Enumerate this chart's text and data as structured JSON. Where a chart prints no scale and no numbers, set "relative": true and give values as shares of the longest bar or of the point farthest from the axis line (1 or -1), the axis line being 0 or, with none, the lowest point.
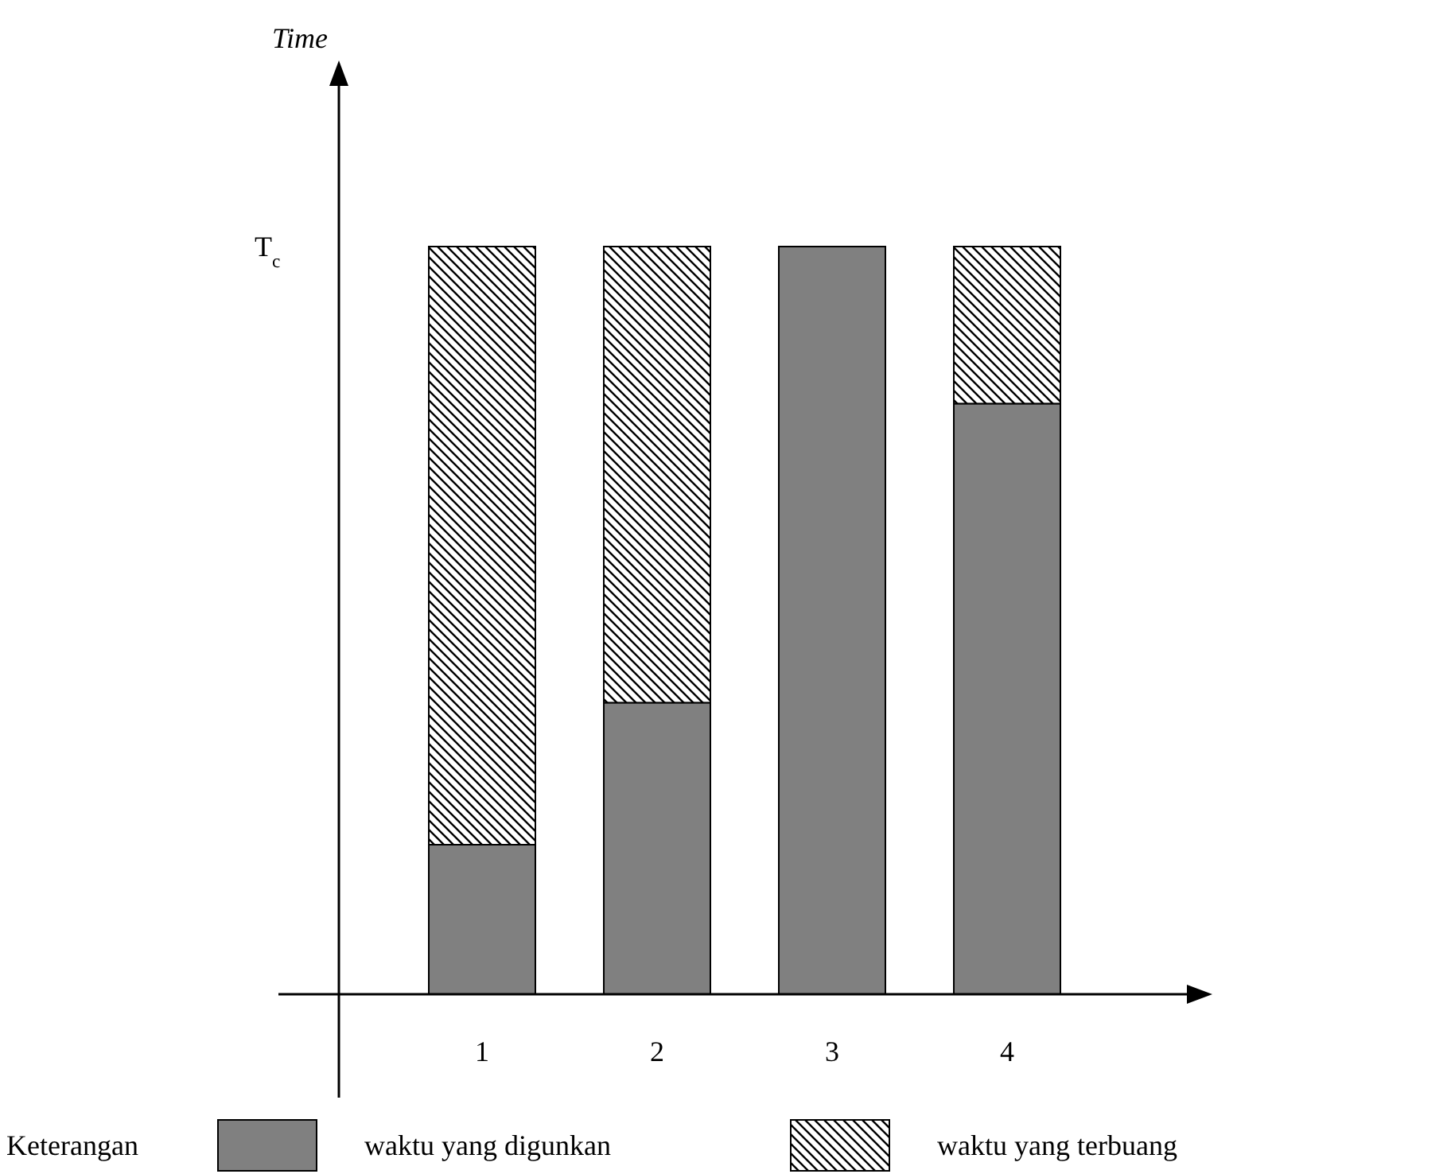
{
  "chart_data": {
    "type": "bar",
    "stacked": true,
    "relative": true,
    "categories": [
      "1",
      "2",
      "3",
      "4"
    ],
    "series": [
      {
        "name": "waktu yang digunkan",
        "color": "#808080",
        "values": [
          0.2,
          0.39,
          1,
          0.79
        ]
      },
      {
        "name": "waktu yang terbuang",
        "color": "#000000",
        "values": [
          0.8,
          0.61,
          0,
          0.21
        ]
      }
    ],
    "legend_title": "Keterangan",
    "legend": "bottom",
    "annotations": [
      "Time",
      "T$_{c}$"
    ]
  }
}
